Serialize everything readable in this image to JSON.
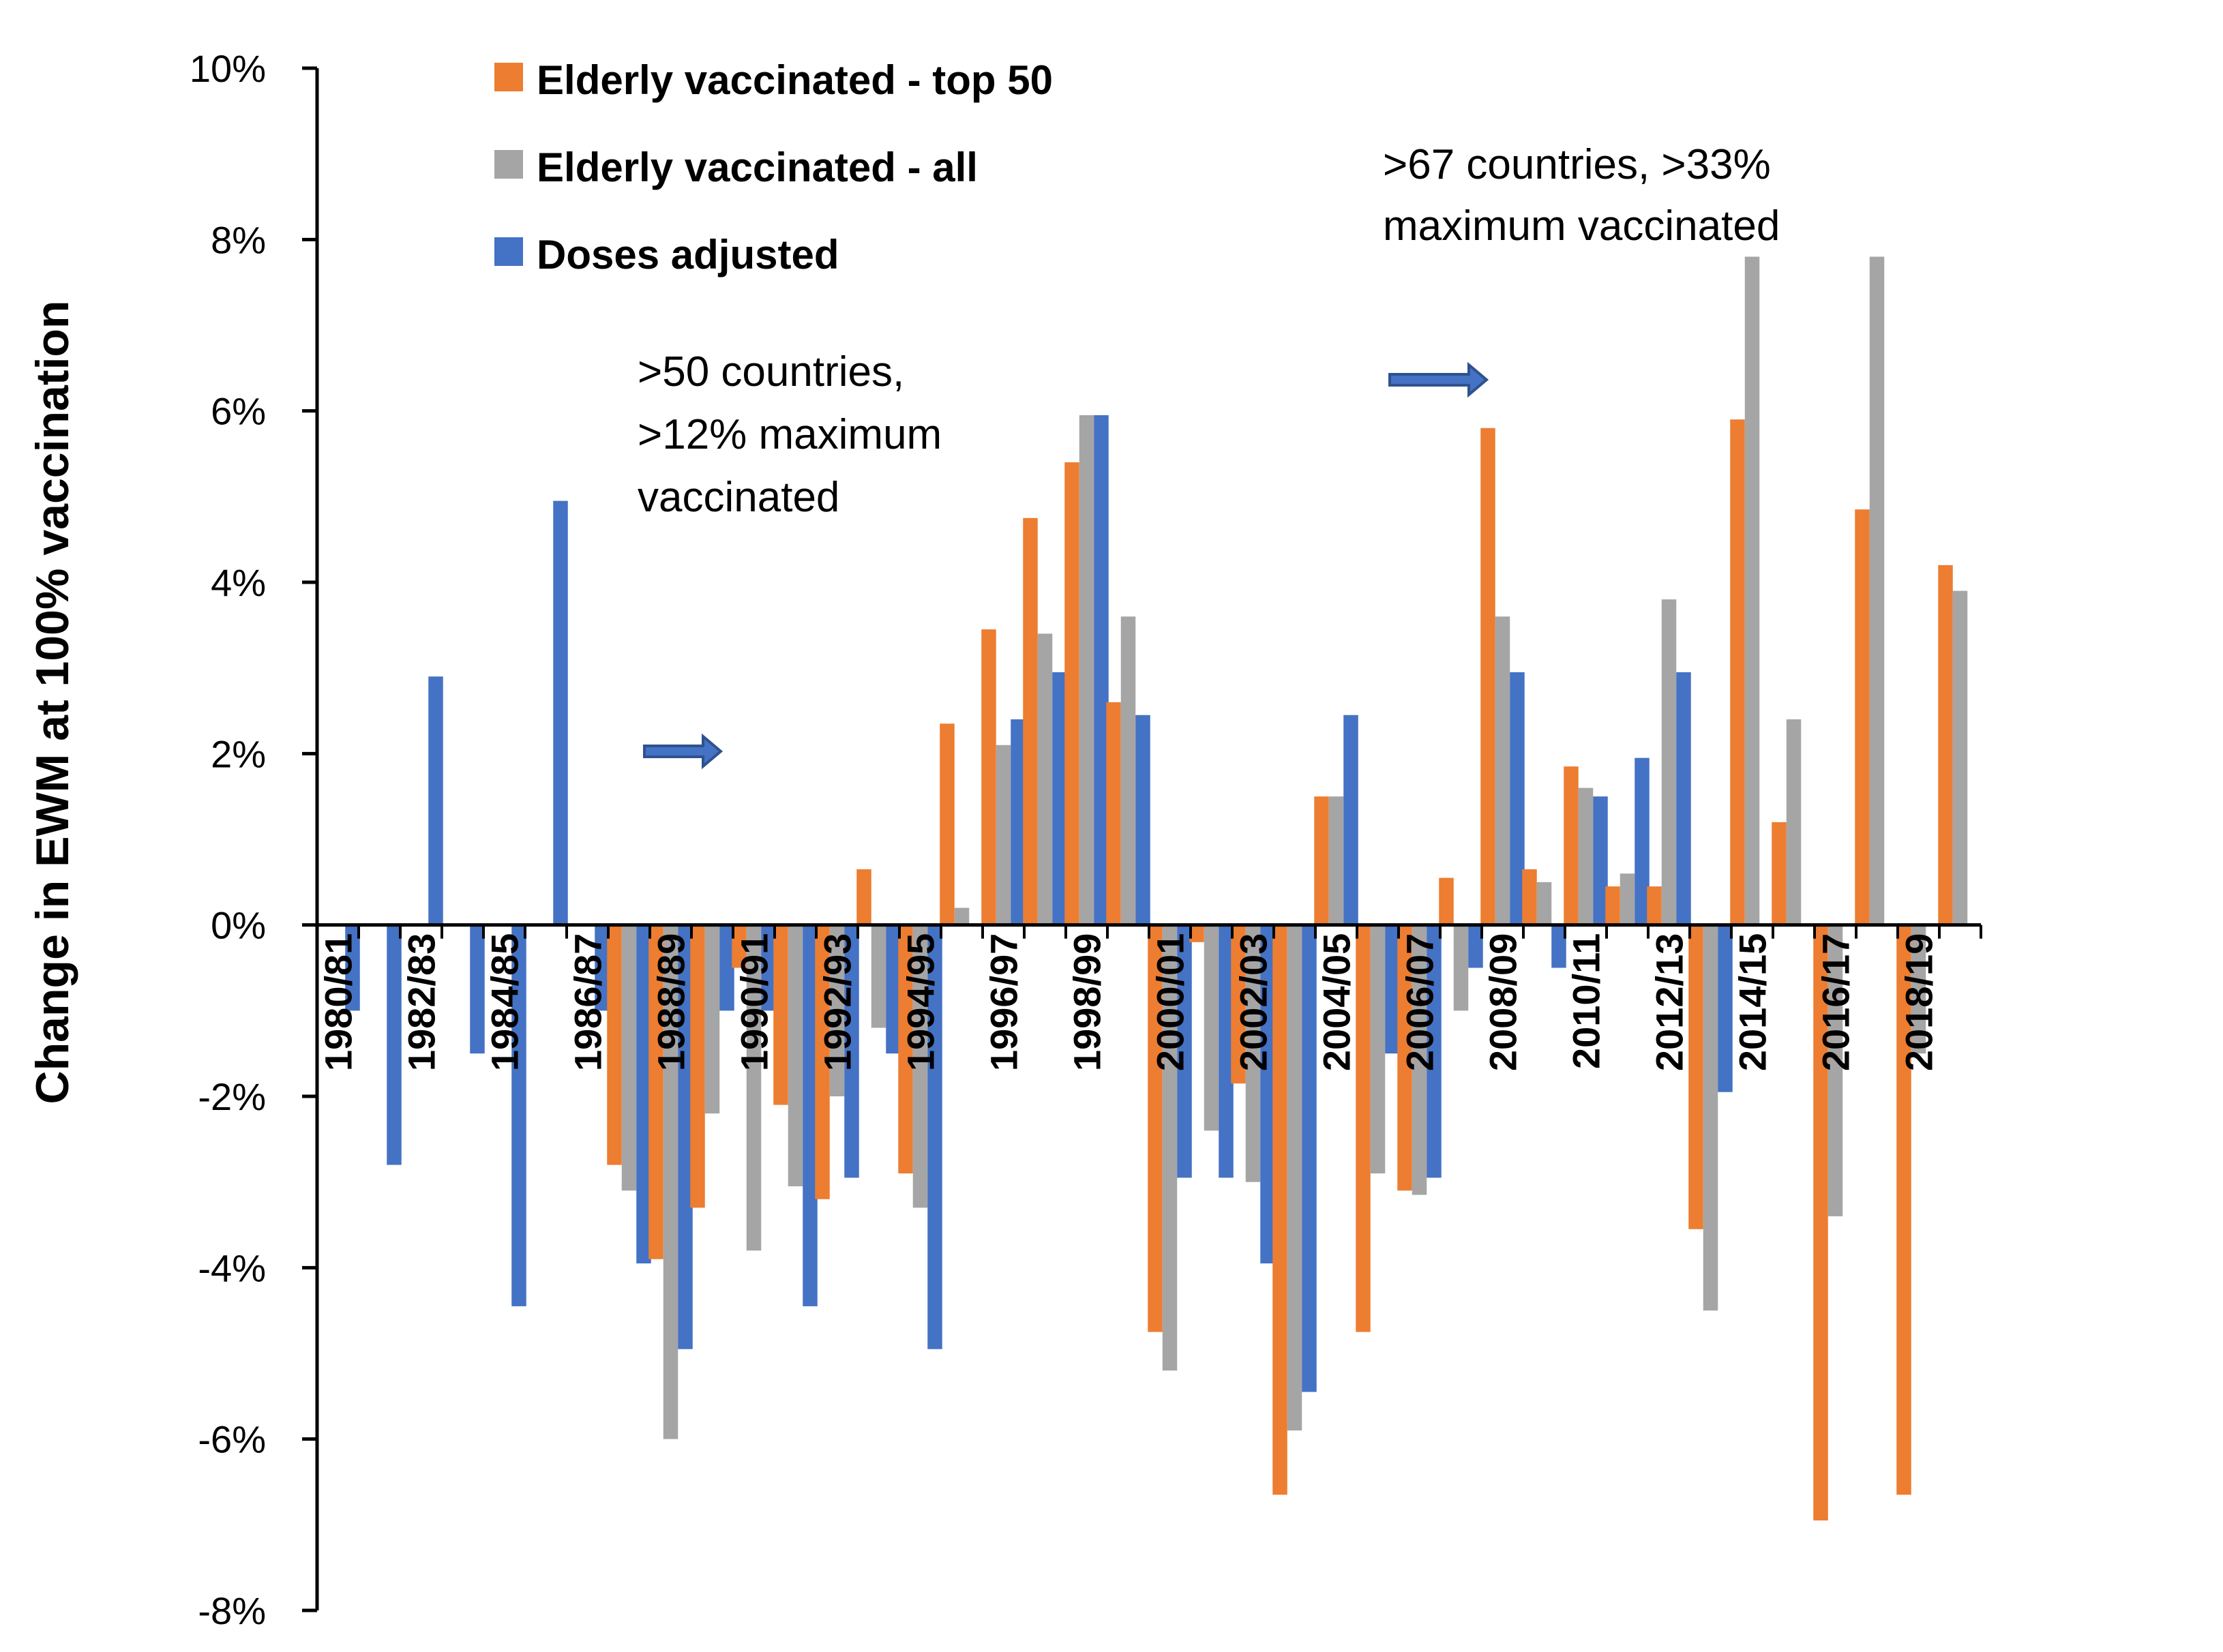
{
  "chart_data": {
    "type": "bar",
    "title": "",
    "xlabel": "",
    "ylabel": "Change in EWM at 100% vaccination",
    "ylim": [
      -8,
      10
    ],
    "yticks": [
      10,
      8,
      6,
      4,
      2,
      0,
      -2,
      -4,
      -6,
      -8
    ],
    "ytick_suffix": "%",
    "grid": false,
    "legend_position": "top-left",
    "categories": [
      "1980/81",
      "1981/82",
      "1982/83",
      "1983/84",
      "1984/85",
      "1985/86",
      "1986/87",
      "1987/88",
      "1988/89",
      "1989/90",
      "1990/91",
      "1991/92",
      "1992/93",
      "1993/94",
      "1994/95",
      "1995/96",
      "1996/97",
      "1997/98",
      "1998/99",
      "1999/00",
      "2000/01",
      "2001/02",
      "2002/03",
      "2003/04",
      "2004/05",
      "2005/06",
      "2006/07",
      "2007/08",
      "2008/09",
      "2009/10",
      "2010/11",
      "2011/12",
      "2012/13",
      "2013/14",
      "2014/15",
      "2015/16",
      "2016/17",
      "2017/18",
      "2018/19",
      "2019/20"
    ],
    "tick_labels": [
      "1980/81",
      "1982/83",
      "1984/85",
      "1986/87",
      "1988/89",
      "1990/91",
      "1992/93",
      "1994/95",
      "1996/97",
      "1998/99",
      "2000/01",
      "2002/03",
      "2004/05",
      "2006/07",
      "2008/09",
      "2010/11",
      "2012/13",
      "2014/15",
      "2016/17",
      "2018/19"
    ],
    "series": [
      {
        "name": "Elderly vaccinated - top 50",
        "color": "#ED7D31",
        "values": [
          null,
          null,
          null,
          null,
          null,
          null,
          null,
          -2.8,
          -3.9,
          -3.3,
          -0.5,
          -2.1,
          -3.2,
          0.65,
          -2.9,
          2.35,
          3.45,
          4.75,
          5.4,
          2.6,
          -4.75,
          -0.2,
          -1.85,
          -6.65,
          1.5,
          -4.75,
          -3.1,
          0.55,
          5.8,
          0.65,
          1.85,
          0.45,
          0.45,
          -3.55,
          5.9,
          1.2,
          -6.95,
          4.85,
          -6.65,
          4.2
        ]
      },
      {
        "name": "Elderly vaccinated - all",
        "color": "#A5A5A5",
        "values": [
          null,
          null,
          null,
          null,
          null,
          null,
          null,
          -3.1,
          -6.0,
          -2.2,
          -3.8,
          -3.05,
          -2.0,
          -1.2,
          -3.3,
          0.2,
          2.1,
          3.4,
          5.95,
          3.6,
          -5.2,
          -2.4,
          -3.0,
          -5.9,
          1.5,
          -2.9,
          -3.15,
          -1.0,
          3.6,
          0.5,
          1.6,
          0.6,
          3.8,
          -4.5,
          7.8,
          2.4,
          -3.4,
          7.8,
          -1.5,
          3.9
        ]
      },
      {
        "name": "Doses adjusted",
        "color": "#4472C4",
        "values": [
          -1.0,
          -2.8,
          2.9,
          -1.5,
          -4.45,
          4.95,
          -1.0,
          -3.95,
          -4.95,
          -1.0,
          -1.0,
          -4.45,
          -2.95,
          -1.5,
          -4.95,
          null,
          2.4,
          2.95,
          5.95,
          2.45,
          -2.95,
          -2.95,
          -3.95,
          -5.45,
          2.45,
          -1.5,
          -2.95,
          -0.5,
          2.95,
          -0.5,
          1.5,
          1.95,
          2.95,
          -1.95,
          null,
          null,
          null,
          null,
          null,
          null
        ]
      }
    ],
    "annotations": [
      {
        "id": "annot-50",
        "lines": [
          ">50 countries,",
          ">12% maximum",
          "vaccinated"
        ]
      },
      {
        "id": "annot-67",
        "lines": [
          ">67 countries, >33%",
          "maximum vaccinated"
        ]
      }
    ]
  }
}
